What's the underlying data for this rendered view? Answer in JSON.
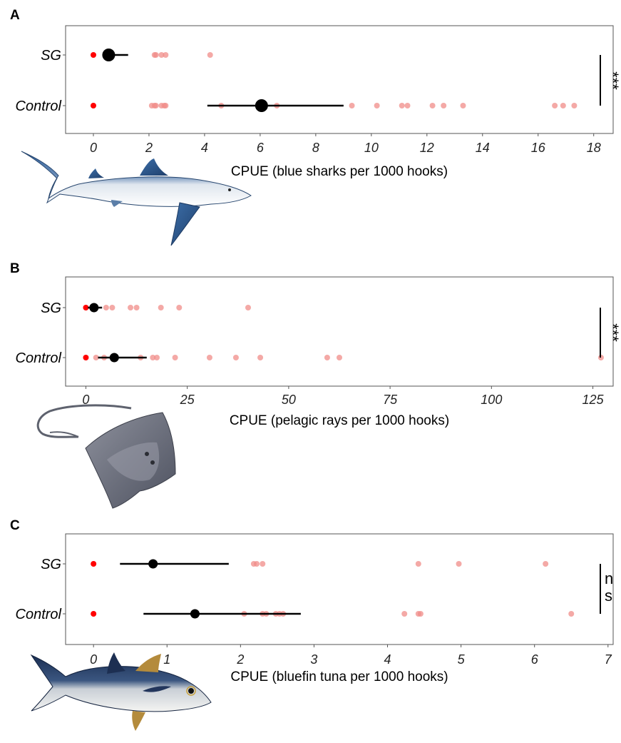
{
  "chart_data": [
    {
      "panel": "A",
      "type": "scatter",
      "categories": [
        "SG",
        "Control"
      ],
      "xlabel": "CPUE (blue sharks per 1000 hooks)",
      "xlim": [
        -1.0,
        18.7
      ],
      "xticks": [
        0,
        2,
        4,
        6,
        8,
        10,
        12,
        14,
        16,
        18
      ],
      "significance": "***",
      "points": {
        "SG": [
          0.0,
          2.2,
          2.25,
          2.45,
          2.6,
          4.2
        ],
        "Control": [
          0.0,
          2.1,
          2.2,
          2.25,
          2.45,
          2.55,
          2.6,
          4.6,
          6.6,
          9.3,
          10.2,
          11.1,
          11.3,
          12.2,
          12.6,
          13.3,
          16.6,
          16.9,
          17.3
        ]
      },
      "means": {
        "SG": 0.55,
        "Control": 6.05
      },
      "intervals": {
        "SG": [
          0.35,
          1.25
        ],
        "Control": [
          4.1,
          9.0
        ]
      },
      "zeros": {
        "SG": 0,
        "Control": 0
      },
      "colors": {
        "points": "#f08c88",
        "zero": "#ff0000",
        "mean": "#000000"
      },
      "illustration": "blue-shark"
    },
    {
      "panel": "B",
      "type": "scatter",
      "categories": [
        "SG",
        "Control"
      ],
      "xlabel": "CPUE (pelagic rays per 1000 hooks)",
      "xlim": [
        -5.0,
        130.0
      ],
      "xticks": [
        0,
        25,
        50,
        75,
        100,
        125
      ],
      "significance": "***",
      "points": {
        "SG": [
          0.0,
          2.0,
          5.0,
          6.5,
          11.0,
          12.5,
          18.5,
          23.0,
          40.0
        ],
        "Control": [
          0.0,
          2.5,
          4.5,
          6.5,
          13.5,
          16.5,
          17.5,
          22.0,
          30.5,
          37.0,
          43.0,
          59.5,
          62.5,
          127.0
        ]
      },
      "means": {
        "SG": 2.0,
        "Control": 7.0
      },
      "intervals": {
        "SG": [
          0.5,
          4.0
        ],
        "Control": [
          3.0,
          15.0
        ]
      },
      "zeros": {
        "SG": 0,
        "Control": 0
      },
      "colors": {
        "points": "#f08c88",
        "zero": "#ff0000",
        "mean": "#000000"
      },
      "illustration": "pelagic-ray"
    },
    {
      "panel": "C",
      "type": "scatter",
      "categories": [
        "SG",
        "Control"
      ],
      "xlabel": "CPUE (bluefin tuna per 1000 hooks)",
      "xlim": [
        -0.38,
        7.07
      ],
      "xticks": [
        0,
        1,
        2,
        3,
        4,
        5,
        6,
        7
      ],
      "significance": "n s",
      "points": {
        "SG": [
          0.0,
          2.18,
          2.22,
          2.3,
          4.42,
          4.97,
          6.15
        ],
        "Control": [
          0.0,
          2.05,
          2.3,
          2.35,
          2.48,
          2.53,
          2.58,
          4.23,
          4.42,
          4.45,
          6.5
        ]
      },
      "means": {
        "SG": 0.81,
        "Control": 1.38
      },
      "intervals": {
        "SG": [
          0.36,
          1.84
        ],
        "Control": [
          0.68,
          2.82
        ]
      },
      "zeros": {
        "SG": 0,
        "Control": 0
      },
      "colors": {
        "points": "#f08c88",
        "zero": "#ff0000",
        "mean": "#000000"
      },
      "illustration": "bluefin-tuna"
    }
  ]
}
